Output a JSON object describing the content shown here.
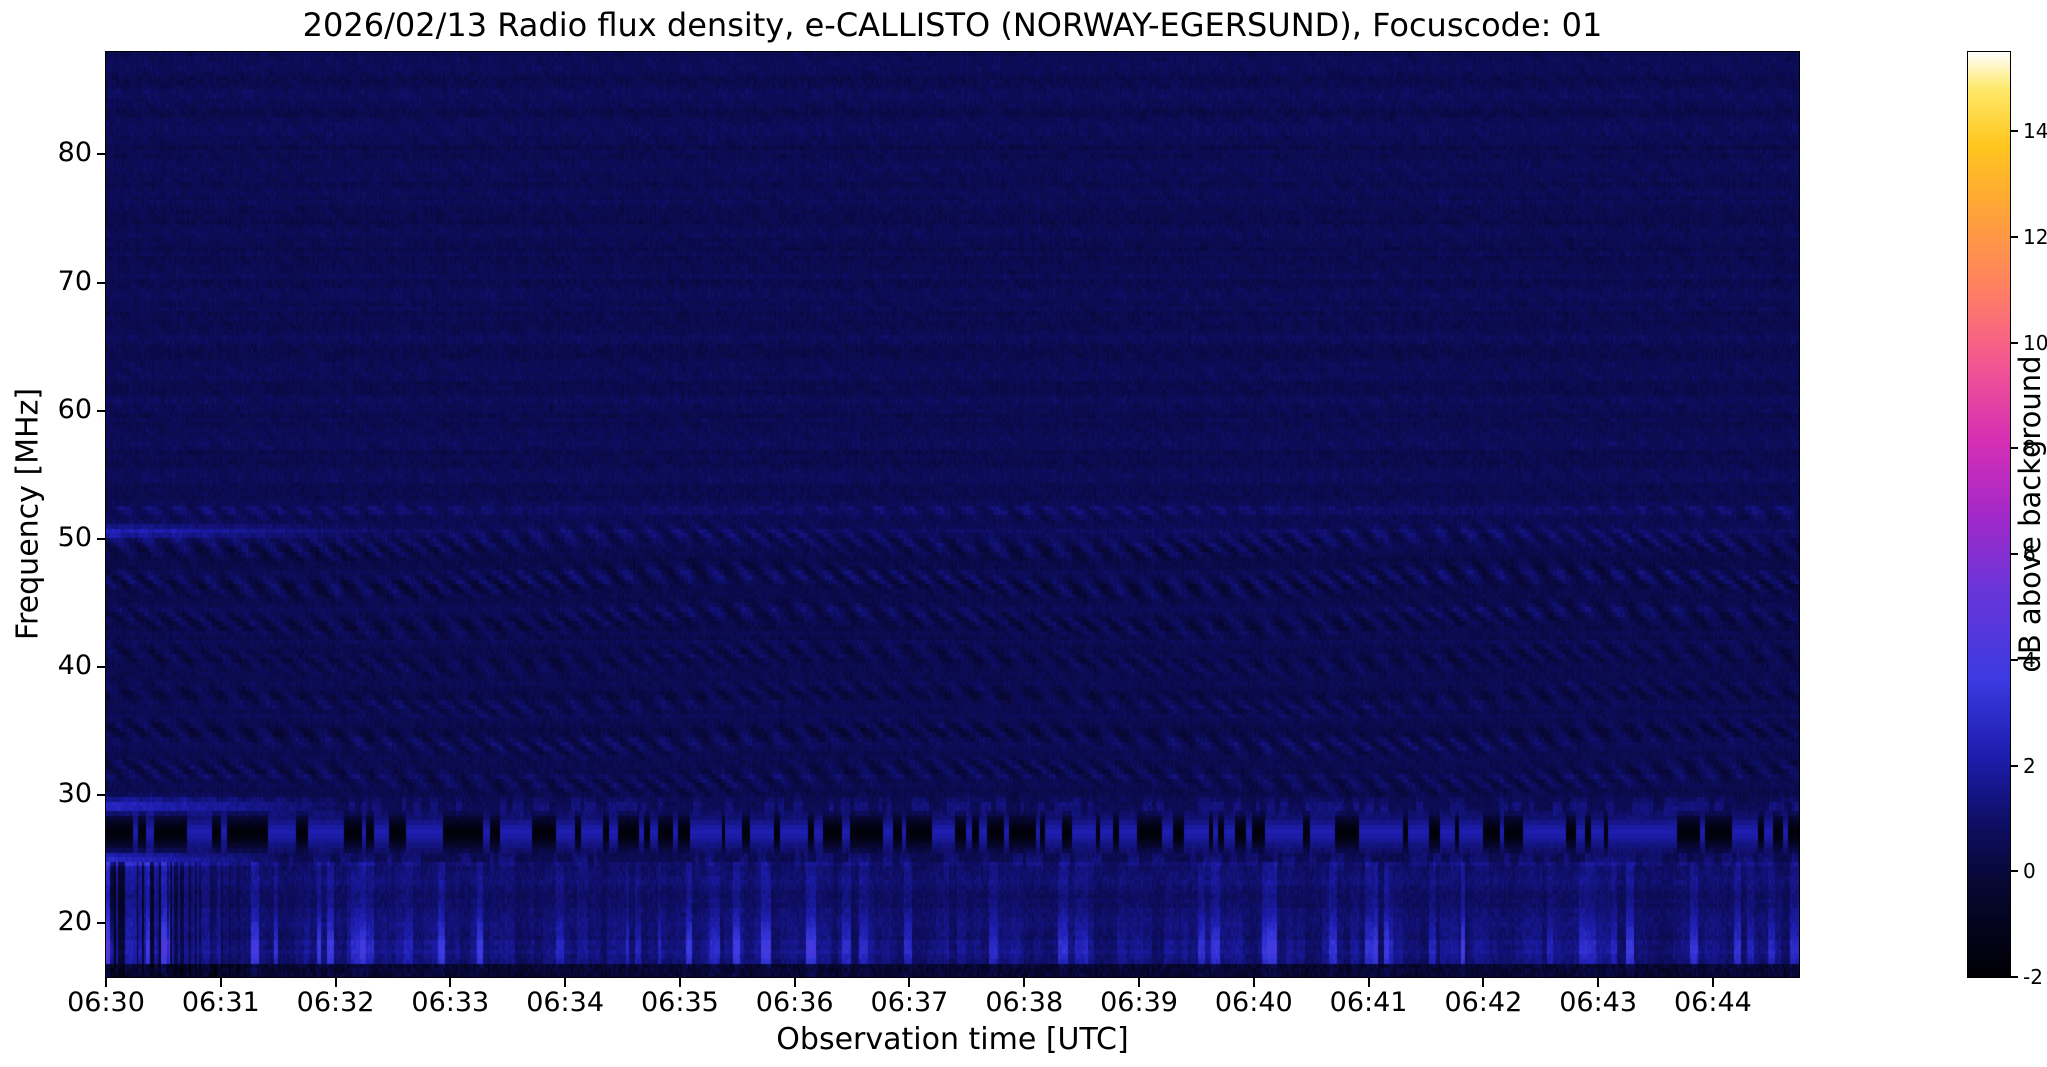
{
  "chart_data": {
    "type": "heatmap",
    "title": "2026/02/13  Radio flux density, e-CALLISTO (NORWAY-EGERSUND), Focuscode: 01",
    "xlabel": "Observation time [UTC]",
    "ylabel": "Frequency [MHz]",
    "colorbar_label": "dB above background",
    "x_ticks": [
      "06:30",
      "06:31",
      "06:32",
      "06:33",
      "06:34",
      "06:35",
      "06:36",
      "06:37",
      "06:38",
      "06:39",
      "06:40",
      "06:41",
      "06:42",
      "06:43",
      "06:44"
    ],
    "y_ticks": [
      20,
      30,
      40,
      50,
      60,
      70,
      80
    ],
    "colorbar_ticks": [
      -2,
      0,
      2,
      4,
      6,
      8,
      10,
      12,
      14
    ],
    "start_time_utc": "06:30",
    "x_range_minutes": [
      0,
      14.75
    ],
    "freq_range_mhz": [
      15.8,
      88
    ],
    "value_range_db": [
      -2,
      15.5
    ],
    "grid": false,
    "legend": "none",
    "colormap": [
      [
        0.0,
        "#000004"
      ],
      [
        0.1,
        "#070733"
      ],
      [
        0.16,
        "#0d0d5e"
      ],
      [
        0.24,
        "#1d1daf"
      ],
      [
        0.32,
        "#3a3ae0"
      ],
      [
        0.42,
        "#6a35d8"
      ],
      [
        0.5,
        "#a328c8"
      ],
      [
        0.58,
        "#d62fb4"
      ],
      [
        0.66,
        "#f25593"
      ],
      [
        0.74,
        "#ff7e64"
      ],
      [
        0.82,
        "#ffa03c"
      ],
      [
        0.9,
        "#ffc61e"
      ],
      [
        0.96,
        "#ffe96a"
      ],
      [
        1.0,
        "#ffffff"
      ]
    ],
    "features": [
      {
        "name": "upper-quiet-region",
        "f_lo": 52.5,
        "f_hi": 88,
        "mean_db": 0.55,
        "speckle_db": 0.55
      },
      {
        "name": "ripple-interference-region",
        "f_lo": 29.5,
        "f_hi": 52.5,
        "ripple_amp_db": 0.42
      },
      {
        "name": "faint-line",
        "f0": 52.3,
        "sigma_mhz": 0.3,
        "amp_db": 0.3
      },
      {
        "name": "carrier-50.6MHz",
        "f0": 50.6,
        "sigma_mhz": 0.4,
        "amp_early_db": 1.6,
        "fade_end_min": 2.5,
        "amp_late_db": 0.35
      },
      {
        "name": "carrier-29.2MHz",
        "f0": 29.2,
        "sigma_mhz": 0.45,
        "amp_early_db": 1.9,
        "fade_end_min": 2.0,
        "amp_late_db": 0.5
      },
      {
        "name": "dashed-rfi-band-27MHz",
        "f0": 27.1,
        "sigma_mhz": 0.8,
        "bright_db": 2.2,
        "dark_db": -1.7,
        "duty_cycle": 0.55
      },
      {
        "name": "carrier-25.0MHz",
        "f0": 25.0,
        "sigma_mhz": 0.45,
        "amp_early_db": 2.0,
        "fade_end_min": 1.5,
        "amp_late_db": 0.45
      },
      {
        "name": "noisy-low-band",
        "f_lo": 16.9,
        "f_hi": 24.8,
        "extra_db": 0.25,
        "striation_peak_mhz": 18.1,
        "striation_amp_db": 1.0
      },
      {
        "name": "dark-bottom-edge",
        "f_lo": 15.8,
        "f_hi": 16.9,
        "level_db": -1.0
      },
      {
        "name": "left-edge-streaks",
        "t_end_min": 1.3,
        "f_hi": 24.8,
        "dark_db": -2.0,
        "bright_db": 0.8
      }
    ]
  }
}
